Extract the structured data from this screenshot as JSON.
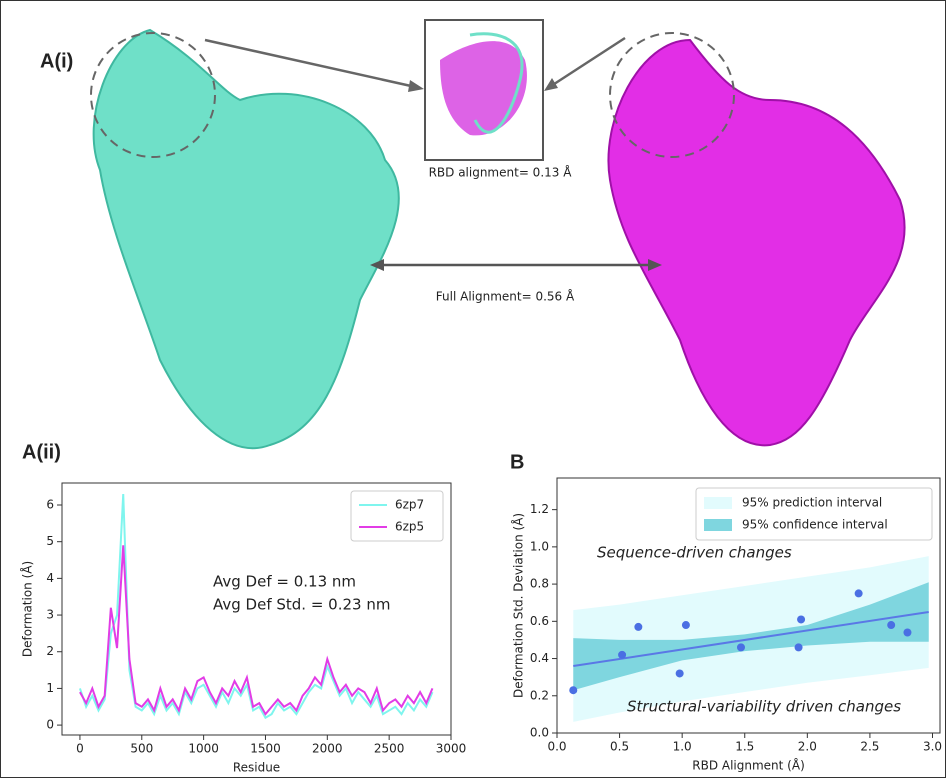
{
  "panel_a": {
    "label": "A(i)",
    "rbd_text": "RBD alignment= 0.13 Å",
    "full_text": "Full Alignment= 0.56 Å"
  },
  "chart_data": [
    {
      "type": "line",
      "panel": "A(ii)",
      "xlabel": "Residue",
      "ylabel": "Deformation  (Å)",
      "x": [
        0,
        50,
        100,
        150,
        200,
        250,
        300,
        350,
        400,
        450,
        500,
        550,
        600,
        650,
        700,
        750,
        800,
        850,
        900,
        950,
        1000,
        1050,
        1100,
        1150,
        1200,
        1250,
        1300,
        1350,
        1400,
        1450,
        1500,
        1550,
        1600,
        1650,
        1700,
        1750,
        1800,
        1850,
        1900,
        1950,
        2000,
        2050,
        2100,
        2150,
        2200,
        2250,
        2300,
        2350,
        2400,
        2450,
        2500,
        2550,
        2600,
        2650,
        2700,
        2750,
        2800,
        2850
      ],
      "series": [
        {
          "name": "6zp7",
          "color": "#7ff5ee",
          "values": [
            1.0,
            0.5,
            0.8,
            0.4,
            0.7,
            2.5,
            3.0,
            6.3,
            1.5,
            0.5,
            0.4,
            0.6,
            0.3,
            0.8,
            0.4,
            0.6,
            0.3,
            0.9,
            0.6,
            1.0,
            1.1,
            0.8,
            0.5,
            0.9,
            0.6,
            1.0,
            0.8,
            1.1,
            0.4,
            0.5,
            0.2,
            0.3,
            0.6,
            0.4,
            0.5,
            0.3,
            0.6,
            0.9,
            1.1,
            1.0,
            1.6,
            1.2,
            0.8,
            1.0,
            0.6,
            0.9,
            0.7,
            0.5,
            0.8,
            0.3,
            0.4,
            0.5,
            0.3,
            0.6,
            0.4,
            0.7,
            0.5,
            0.9
          ]
        },
        {
          "name": "6zp5",
          "color": "#e23ce6",
          "values": [
            0.9,
            0.6,
            1.0,
            0.5,
            0.8,
            3.2,
            2.1,
            4.9,
            1.8,
            0.6,
            0.5,
            0.7,
            0.4,
            1.0,
            0.5,
            0.7,
            0.4,
            1.0,
            0.7,
            1.2,
            1.3,
            0.9,
            0.6,
            1.0,
            0.8,
            1.2,
            0.9,
            1.3,
            0.5,
            0.6,
            0.3,
            0.5,
            0.7,
            0.5,
            0.6,
            0.4,
            0.8,
            1.0,
            1.3,
            1.1,
            1.8,
            1.3,
            0.9,
            1.1,
            0.8,
            1.0,
            0.9,
            0.6,
            1.0,
            0.4,
            0.6,
            0.7,
            0.5,
            0.8,
            0.6,
            0.9,
            0.6,
            1.0
          ]
        }
      ],
      "annotations": [
        "Avg Def = 0.13 nm",
        "Avg Def Std. = 0.23 nm"
      ],
      "xlim": [
        -145,
        3000
      ],
      "xticks": [
        0,
        500,
        1000,
        1500,
        2000,
        2500,
        3000
      ],
      "ylim": [
        -0.27,
        6.6
      ],
      "yticks": [
        0,
        1,
        2,
        3,
        4,
        5,
        6
      ],
      "legend": "upper-right"
    },
    {
      "type": "scatter",
      "panel": "B",
      "xlabel": "RBD Alignment (Å)",
      "ylabel": "Deformation Std. Deviation (Å)",
      "x": [
        0.13,
        0.52,
        0.65,
        0.98,
        1.03,
        1.47,
        1.93,
        1.95,
        2.41,
        2.67,
        2.8
      ],
      "values": [
        0.23,
        0.42,
        0.57,
        0.32,
        0.58,
        0.46,
        0.46,
        0.61,
        0.75,
        0.58,
        0.54
      ],
      "color": "#4a6fe3",
      "fit": {
        "x": [
          0.13,
          2.97
        ],
        "values": [
          0.36,
          0.65
        ],
        "color": "#5a78e6"
      },
      "band_x": [
        0.13,
        0.5,
        1.0,
        1.5,
        2.0,
        2.5,
        2.97
      ],
      "bands": [
        {
          "name": "95% prediction interval",
          "color": "#e2fbfd",
          "lower": [
            0.06,
            0.11,
            0.17,
            0.22,
            0.27,
            0.31,
            0.35
          ],
          "upper": [
            0.66,
            0.69,
            0.74,
            0.79,
            0.84,
            0.89,
            0.95
          ]
        },
        {
          "name": "95% confidence interval",
          "color": "#7fd6df",
          "lower": [
            0.23,
            0.3,
            0.39,
            0.44,
            0.47,
            0.49,
            0.49
          ],
          "upper": [
            0.51,
            0.5,
            0.5,
            0.53,
            0.58,
            0.69,
            0.81
          ]
        }
      ],
      "annotations": [
        "Sequence-driven changes",
        "Structural-variability driven changes"
      ],
      "xlim": [
        0,
        3.06
      ],
      "xticks": [
        {
          "value": 0,
          "label": "0.0"
        },
        {
          "value": 0.5,
          "label": "0.5"
        },
        {
          "value": 1,
          "label": "1.0"
        },
        {
          "value": 1.5,
          "label": "1.5"
        },
        {
          "value": 2,
          "label": "2.0"
        },
        {
          "value": 2.5,
          "label": "2.5"
        },
        {
          "value": 3,
          "label": "3.0"
        }
      ],
      "ylim": [
        0,
        1.37
      ],
      "yticks": [
        {
          "value": 0,
          "label": "0.0"
        },
        {
          "value": 0.2,
          "label": "0.2"
        },
        {
          "value": 0.4,
          "label": "0.4"
        },
        {
          "value": 0.6,
          "label": "0.6"
        },
        {
          "value": 0.8,
          "label": "0.8"
        },
        {
          "value": 1,
          "label": "1.0"
        },
        {
          "value": 1.2,
          "label": "1.2"
        }
      ],
      "legend": "upper-right"
    }
  ]
}
